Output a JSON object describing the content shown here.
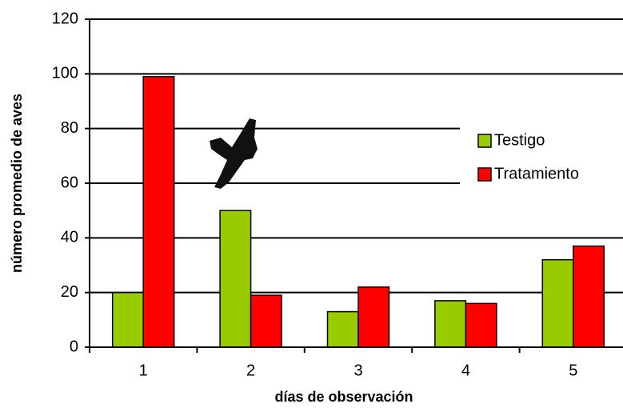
{
  "chart_data": {
    "type": "bar",
    "x_label": "días de observación",
    "y_label": "número promedio de aves",
    "categories": [
      "1",
      "2",
      "3",
      "4",
      "5"
    ],
    "series": [
      {
        "name": "Testigo",
        "color": "#99cc00",
        "values": [
          20,
          50,
          13,
          17,
          32
        ]
      },
      {
        "name": "Tratamiento",
        "color": "#ff0000",
        "values": [
          99,
          19,
          22,
          16,
          37
        ]
      }
    ],
    "ylim": [
      0,
      120
    ],
    "yticks": [
      0,
      20,
      40,
      60,
      80,
      100,
      120
    ],
    "grid": true,
    "legend": "right"
  }
}
